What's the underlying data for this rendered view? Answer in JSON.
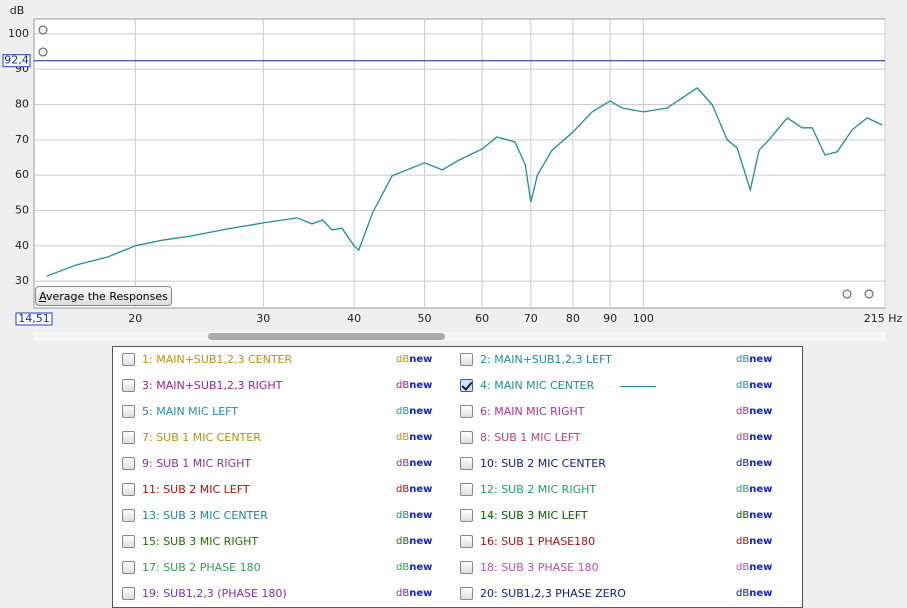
{
  "chart_data": {
    "type": "line",
    "y_label": "dB",
    "log_x": true,
    "grid": true,
    "xlim": [
      14.51,
      215
    ],
    "ylim": [
      22.4,
      104.2
    ],
    "xticks": [
      20,
      30,
      40,
      50,
      60,
      70,
      80,
      90,
      100,
      {
        "value": 215,
        "label": "215 Hz"
      }
    ],
    "yticks": [
      30,
      40,
      50,
      60,
      70,
      80,
      90,
      100
    ],
    "x_cursor": {
      "value": 14.51,
      "label": "14,51"
    },
    "y_cursor": {
      "value": 92.4,
      "label": "92,4"
    },
    "series": [
      {
        "color": "#1f8f96",
        "x": [
          15.1,
          16.6,
          18.3,
          20,
          21.8,
          23.9,
          26.8,
          30,
          33.4,
          35.0,
          36.2,
          37.3,
          38.5,
          40,
          40.6,
          42.4,
          45.1,
          50,
          52.9,
          55.8,
          60,
          62.9,
          66.6,
          68.8,
          70,
          71.5,
          74.9,
          80,
          85.0,
          90,
          93.5,
          100,
          107.8,
          118.6,
          124.4,
          130.4,
          134.6,
          140.3,
          144.3,
          148.9,
          157.7,
          165.4,
          170.7,
          177.8,
          184.8,
          193.7,
          203.2,
          213.1
        ],
        "values": [
          31.4,
          34.6,
          36.8,
          40,
          41.6,
          42.8,
          44.8,
          46.5,
          47.9,
          46.2,
          47.3,
          44.5,
          45.0,
          40,
          38.8,
          49.3,
          59.8,
          63.5,
          61.5,
          64.3,
          67.4,
          70.8,
          69.4,
          62.9,
          52.4,
          60.1,
          67.1,
          72.2,
          77.9,
          81.0,
          79.0,
          77.9,
          79.0,
          84.7,
          79.9,
          70.0,
          67.7,
          55.8,
          67.1,
          70.0,
          76.2,
          73.4,
          73.4,
          65.7,
          66.6,
          72.8,
          76.2,
          74.2
        ]
      }
    ]
  },
  "button": {
    "label": "Average the Responses"
  },
  "response_list": {
    "badge": [
      "dB",
      "new"
    ],
    "entries": [
      {
        "name": "1: MAIN+SUB1,2,3 CENTER",
        "color": "#c0900f",
        "checked": false
      },
      {
        "name": "2: MAIN+SUB1,2,3 LEFT",
        "color": "#1f8f96",
        "checked": false
      },
      {
        "name": "3: MAIN+SUB1,2,3 RIGHT",
        "color": "#a0209a",
        "checked": false
      },
      {
        "name": "4: MAIN MIC CENTER",
        "color": "#1f8f96",
        "checked": true
      },
      {
        "name": "5: MAIN MIC LEFT",
        "color": "#2a88b0",
        "checked": false
      },
      {
        "name": "6: MAIN MIC RIGHT",
        "color": "#b03090",
        "checked": false
      },
      {
        "name": "7: SUB 1 MIC CENTER",
        "color": "#b8900f",
        "checked": false
      },
      {
        "name": "8: SUB 1 MIC LEFT",
        "color": "#c04080",
        "checked": false
      },
      {
        "name": "9: SUB 1 MIC RIGHT",
        "color": "#9030a0",
        "checked": false
      },
      {
        "name": "10: SUB 2 MIC CENTER",
        "color": "#102080",
        "checked": false
      },
      {
        "name": "11: SUB 2 MIC LEFT",
        "color": "#b01010",
        "checked": false
      },
      {
        "name": "12: SUB 2 MIC RIGHT",
        "color": "#20a060",
        "checked": false
      },
      {
        "name": "13: SUB 3 MIC CENTER",
        "color": "#2080a0",
        "checked": false
      },
      {
        "name": "14: SUB 3 MIC LEFT",
        "color": "#006000",
        "checked": false
      },
      {
        "name": "15: SUB 3 MIC RIGHT",
        "color": "#207000",
        "checked": false
      },
      {
        "name": "16: SUB 1 PHASE180",
        "color": "#b01010",
        "checked": false
      },
      {
        "name": "17: SUB 2 PHASE 180",
        "color": "#30a050",
        "checked": false
      },
      {
        "name": "18: SUB 3 PHASE 180",
        "color": "#c050a0",
        "checked": false
      },
      {
        "name": "19: SUB1,2,3 (PHASE 180)",
        "color": "#8030a0",
        "checked": false
      },
      {
        "name": "20: SUB1,2,3 PHASE ZERO",
        "color": "#102080",
        "checked": false
      }
    ]
  }
}
